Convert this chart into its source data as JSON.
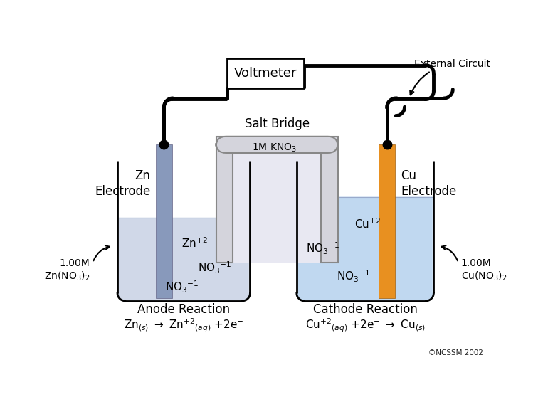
{
  "bg_color": "#ffffff",
  "zn_electrode_color": "#8899bb",
  "cu_electrode_color": "#e89020",
  "beaker_line_color": "#000000",
  "solution_zn_color": "#d0d8e8",
  "solution_cu_color": "#c0d8f0",
  "salt_bridge_fill": "#d4d4dc",
  "salt_bridge_inner": "#e8e8f0",
  "salt_bridge_outline": "#888888",
  "wire_color": "#000000",
  "voltmeter_label": "Voltmeter",
  "salt_bridge_label": "Salt Bridge",
  "kno3_label": "1M KNO$_3$",
  "zn_electrode_label": "Zn\nElectrode",
  "cu_electrode_label": "Cu\nElectrode",
  "external_circuit_label": "External Circuit",
  "left_solution_label": "1.00M\nZn(NO$_3$)$_2$",
  "right_solution_label": "1.00M\nCu(NO$_3$)$_2$",
  "anode_reaction_label": "Anode Reaction",
  "cathode_reaction_label": "Cathode Reaction",
  "anode_eq_1": "Zn",
  "cathode_eq_1": "Cu",
  "copyright": "©NCSSM 2002",
  "zn2_label": "Zn$^{+2}$",
  "no3_zn_1": "NO$_3$$^{-1}$",
  "no3_zn_2": "NO$_3$$^{-1}$",
  "cu2_label": "Cu$^{+2}$",
  "no3_cu_1": "NO$_3$$^{-1}$",
  "no3_cu_2": "NO$_3$$^{-1}$"
}
